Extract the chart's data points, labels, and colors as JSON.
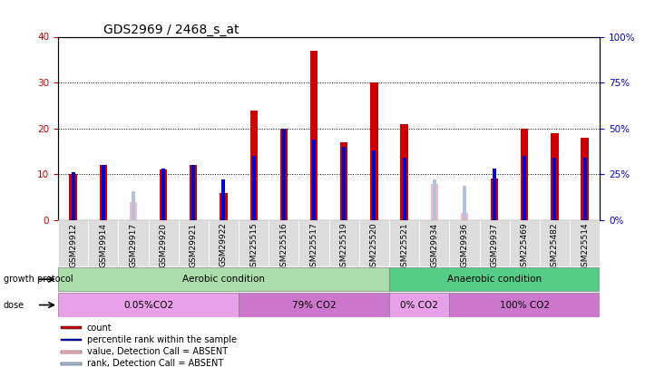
{
  "title": "GDS2969 / 2468_s_at",
  "samples": [
    "GSM29912",
    "GSM29914",
    "GSM29917",
    "GSM29920",
    "GSM29921",
    "GSM29922",
    "GSM225515",
    "GSM225516",
    "GSM225517",
    "GSM225519",
    "GSM225520",
    "GSM225521",
    "GSM29934",
    "GSM29936",
    "GSM29937",
    "GSM225469",
    "GSM225482",
    "GSM225514"
  ],
  "count_values": [
    10,
    12,
    0,
    11,
    12,
    6,
    24,
    20,
    37,
    17,
    30,
    21,
    0,
    0,
    9,
    20,
    19,
    18
  ],
  "rank_values": [
    26,
    30,
    0,
    28,
    30,
    22,
    35,
    50,
    44,
    40,
    38,
    34,
    22,
    19,
    28,
    35,
    34,
    34
  ],
  "absent_value": [
    0,
    0,
    4,
    0,
    0,
    0,
    0,
    0,
    0,
    0,
    0,
    0,
    8,
    1.5,
    0,
    0,
    0,
    0
  ],
  "absent_rank": [
    0,
    0,
    16,
    0,
    0,
    0,
    0,
    0,
    0,
    0,
    0,
    0,
    22,
    19,
    0,
    0,
    0,
    0
  ],
  "is_absent": [
    false,
    false,
    true,
    false,
    false,
    false,
    false,
    false,
    false,
    false,
    false,
    false,
    true,
    true,
    false,
    false,
    false,
    false
  ],
  "count_color": "#cc0000",
  "rank_color": "#0000cc",
  "absent_val_color": "#ffb6c1",
  "absent_rank_color": "#b0c4de",
  "ylim_left": [
    0,
    40
  ],
  "ylim_right": [
    0,
    100
  ],
  "yticks_left": [
    0,
    10,
    20,
    30,
    40
  ],
  "yticks_right": [
    0,
    25,
    50,
    75,
    100
  ],
  "growth_protocol_groups": [
    {
      "label": "Aerobic condition",
      "start": 0,
      "end": 11,
      "color": "#aaddaa"
    },
    {
      "label": "Anaerobic condition",
      "start": 11,
      "end": 18,
      "color": "#55cc88"
    }
  ],
  "dose_groups": [
    {
      "label": "0.05%CO2",
      "start": 0,
      "end": 6,
      "color": "#e8a0e8"
    },
    {
      "label": "79% CO2",
      "start": 6,
      "end": 11,
      "color": "#cc77cc"
    },
    {
      "label": "0% CO2",
      "start": 11,
      "end": 13,
      "color": "#e8a0e8"
    },
    {
      "label": "100% CO2",
      "start": 13,
      "end": 18,
      "color": "#cc77cc"
    }
  ],
  "legend_items": [
    {
      "label": "count",
      "color": "#cc0000"
    },
    {
      "label": "percentile rank within the sample",
      "color": "#0000cc"
    },
    {
      "label": "value, Detection Call = ABSENT",
      "color": "#ffb6c1"
    },
    {
      "label": "rank, Detection Call = ABSENT",
      "color": "#b0c4de"
    }
  ],
  "bar_width": 0.25,
  "rank_bar_width": 0.12
}
